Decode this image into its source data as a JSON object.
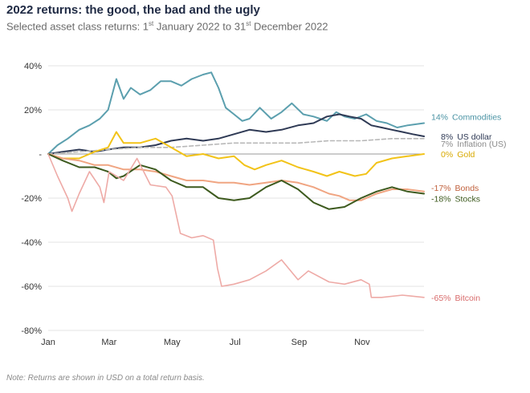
{
  "title": "2022 returns: the good, the bad and the ugly",
  "subtitle": {
    "prefix": "Selected asset class returns:  1",
    "sup1": "st",
    "middle": " January 2022 to 31",
    "sup2": "st",
    "suffix": " December 2022"
  },
  "footnote": "Note: Returns are shown in USD on a total return basis.",
  "chart_data": {
    "type": "line",
    "ylim": [
      -80,
      40
    ],
    "yticks": [
      40,
      20,
      0,
      -20,
      -40,
      -60,
      -80
    ],
    "ytick_labels": [
      "40%",
      "20%",
      "-",
      "-20%",
      "-40%",
      "-60%",
      "-80%"
    ],
    "xlim": [
      "2022-01-01",
      "2022-12-31"
    ],
    "xticks": [
      "2022-01-01",
      "2022-03-01",
      "2022-05-01",
      "2022-07-01",
      "2022-09-01",
      "2022-11-01"
    ],
    "xtick_labels": [
      "Jan",
      "Mar",
      "May",
      "Jul",
      "Sep",
      "Nov"
    ],
    "grid": "horizontal",
    "series": [
      {
        "name": "Commodities",
        "end_label": "14%",
        "color": "#5b9fae",
        "width": 2,
        "dash": "",
        "points": [
          [
            "2022-01-01",
            0
          ],
          [
            "2022-01-10",
            4
          ],
          [
            "2022-01-20",
            7
          ],
          [
            "2022-01-31",
            11
          ],
          [
            "2022-02-10",
            13
          ],
          [
            "2022-02-20",
            16
          ],
          [
            "2022-02-28",
            20
          ],
          [
            "2022-03-08",
            34
          ],
          [
            "2022-03-15",
            25
          ],
          [
            "2022-03-22",
            30
          ],
          [
            "2022-03-31",
            27
          ],
          [
            "2022-04-10",
            29
          ],
          [
            "2022-04-20",
            33
          ],
          [
            "2022-04-30",
            33
          ],
          [
            "2022-05-10",
            31
          ],
          [
            "2022-05-20",
            34
          ],
          [
            "2022-05-31",
            36
          ],
          [
            "2022-06-08",
            37
          ],
          [
            "2022-06-15",
            30
          ],
          [
            "2022-06-22",
            21
          ],
          [
            "2022-06-30",
            18
          ],
          [
            "2022-07-08",
            15
          ],
          [
            "2022-07-15",
            16
          ],
          [
            "2022-07-25",
            21
          ],
          [
            "2022-08-05",
            16
          ],
          [
            "2022-08-15",
            19
          ],
          [
            "2022-08-25",
            23
          ],
          [
            "2022-09-05",
            18
          ],
          [
            "2022-09-15",
            17
          ],
          [
            "2022-09-28",
            15
          ],
          [
            "2022-10-07",
            19
          ],
          [
            "2022-10-15",
            17
          ],
          [
            "2022-10-25",
            16
          ],
          [
            "2022-11-05",
            18
          ],
          [
            "2022-11-15",
            15
          ],
          [
            "2022-11-25",
            14
          ],
          [
            "2022-12-05",
            12
          ],
          [
            "2022-12-15",
            13
          ],
          [
            "2022-12-31",
            14
          ]
        ]
      },
      {
        "name": "US dollar",
        "end_label": "8%",
        "color": "#2f3a55",
        "width": 2,
        "dash": "",
        "points": [
          [
            "2022-01-01",
            0
          ],
          [
            "2022-01-15",
            1
          ],
          [
            "2022-01-31",
            2
          ],
          [
            "2022-02-15",
            1
          ],
          [
            "2022-02-28",
            2
          ],
          [
            "2022-03-15",
            3
          ],
          [
            "2022-03-31",
            3
          ],
          [
            "2022-04-15",
            4
          ],
          [
            "2022-04-30",
            6
          ],
          [
            "2022-05-15",
            7
          ],
          [
            "2022-05-31",
            6
          ],
          [
            "2022-06-15",
            7
          ],
          [
            "2022-06-30",
            9
          ],
          [
            "2022-07-15",
            11
          ],
          [
            "2022-07-31",
            10
          ],
          [
            "2022-08-15",
            11
          ],
          [
            "2022-08-31",
            13
          ],
          [
            "2022-09-15",
            14
          ],
          [
            "2022-09-28",
            17
          ],
          [
            "2022-10-10",
            18
          ],
          [
            "2022-10-20",
            17
          ],
          [
            "2022-10-31",
            16
          ],
          [
            "2022-11-10",
            13
          ],
          [
            "2022-11-20",
            12
          ],
          [
            "2022-11-30",
            11
          ],
          [
            "2022-12-10",
            10
          ],
          [
            "2022-12-20",
            9
          ],
          [
            "2022-12-31",
            8
          ]
        ]
      },
      {
        "name": "Inflation (US)",
        "end_label": "7%",
        "color": "#b8b8b8",
        "width": 1.6,
        "dash": "5,3",
        "points": [
          [
            "2022-01-01",
            0
          ],
          [
            "2022-01-31",
            1
          ],
          [
            "2022-02-28",
            2
          ],
          [
            "2022-03-31",
            3
          ],
          [
            "2022-04-30",
            3
          ],
          [
            "2022-05-31",
            4
          ],
          [
            "2022-06-30",
            5
          ],
          [
            "2022-07-31",
            5
          ],
          [
            "2022-08-31",
            5
          ],
          [
            "2022-09-30",
            6
          ],
          [
            "2022-10-31",
            6
          ],
          [
            "2022-11-30",
            7
          ],
          [
            "2022-12-31",
            7
          ]
        ]
      },
      {
        "name": "Gold",
        "end_label": "0%",
        "color": "#f2c318",
        "width": 2,
        "dash": "",
        "points": [
          [
            "2022-01-01",
            0
          ],
          [
            "2022-01-15",
            -2
          ],
          [
            "2022-01-31",
            -2
          ],
          [
            "2022-02-15",
            1
          ],
          [
            "2022-02-28",
            3
          ],
          [
            "2022-03-08",
            10
          ],
          [
            "2022-03-15",
            5
          ],
          [
            "2022-03-31",
            5
          ],
          [
            "2022-04-15",
            7
          ],
          [
            "2022-04-30",
            3
          ],
          [
            "2022-05-15",
            -1
          ],
          [
            "2022-05-31",
            0
          ],
          [
            "2022-06-15",
            -2
          ],
          [
            "2022-06-30",
            -1
          ],
          [
            "2022-07-10",
            -5
          ],
          [
            "2022-07-20",
            -7
          ],
          [
            "2022-07-31",
            -5
          ],
          [
            "2022-08-15",
            -3
          ],
          [
            "2022-08-31",
            -6
          ],
          [
            "2022-09-15",
            -8
          ],
          [
            "2022-09-28",
            -10
          ],
          [
            "2022-10-10",
            -8
          ],
          [
            "2022-10-25",
            -10
          ],
          [
            "2022-11-05",
            -9
          ],
          [
            "2022-11-15",
            -4
          ],
          [
            "2022-11-30",
            -2
          ],
          [
            "2022-12-15",
            -1
          ],
          [
            "2022-12-31",
            0
          ]
        ]
      },
      {
        "name": "Bonds",
        "end_label": "-17%",
        "color": "#f0a582",
        "width": 2,
        "dash": "",
        "points": [
          [
            "2022-01-01",
            0
          ],
          [
            "2022-01-15",
            -2
          ],
          [
            "2022-01-31",
            -3
          ],
          [
            "2022-02-15",
            -5
          ],
          [
            "2022-02-28",
            -5
          ],
          [
            "2022-03-15",
            -7
          ],
          [
            "2022-03-31",
            -7
          ],
          [
            "2022-04-15",
            -8
          ],
          [
            "2022-04-30",
            -10
          ],
          [
            "2022-05-15",
            -12
          ],
          [
            "2022-05-31",
            -12
          ],
          [
            "2022-06-15",
            -13
          ],
          [
            "2022-06-30",
            -13
          ],
          [
            "2022-07-15",
            -14
          ],
          [
            "2022-07-31",
            -13
          ],
          [
            "2022-08-15",
            -12
          ],
          [
            "2022-08-31",
            -13
          ],
          [
            "2022-09-15",
            -15
          ],
          [
            "2022-09-30",
            -18
          ],
          [
            "2022-10-10",
            -19
          ],
          [
            "2022-10-20",
            -21
          ],
          [
            "2022-10-31",
            -21
          ],
          [
            "2022-11-15",
            -18
          ],
          [
            "2022-11-30",
            -16
          ],
          [
            "2022-12-15",
            -16
          ],
          [
            "2022-12-31",
            -17
          ]
        ]
      },
      {
        "name": "Stocks",
        "end_label": "-18%",
        "color": "#3d5a1e",
        "width": 2,
        "dash": "",
        "points": [
          [
            "2022-01-01",
            0
          ],
          [
            "2022-01-15",
            -3
          ],
          [
            "2022-01-31",
            -6
          ],
          [
            "2022-02-15",
            -6
          ],
          [
            "2022-02-28",
            -8
          ],
          [
            "2022-03-08",
            -11
          ],
          [
            "2022-03-15",
            -10
          ],
          [
            "2022-03-31",
            -5
          ],
          [
            "2022-04-15",
            -7
          ],
          [
            "2022-04-30",
            -12
          ],
          [
            "2022-05-15",
            -15
          ],
          [
            "2022-05-31",
            -15
          ],
          [
            "2022-06-15",
            -20
          ],
          [
            "2022-06-30",
            -21
          ],
          [
            "2022-07-15",
            -20
          ],
          [
            "2022-07-31",
            -15
          ],
          [
            "2022-08-15",
            -12
          ],
          [
            "2022-08-31",
            -16
          ],
          [
            "2022-09-15",
            -22
          ],
          [
            "2022-09-30",
            -25
          ],
          [
            "2022-10-15",
            -24
          ],
          [
            "2022-10-31",
            -20
          ],
          [
            "2022-11-15",
            -17
          ],
          [
            "2022-11-30",
            -15
          ],
          [
            "2022-12-15",
            -17
          ],
          [
            "2022-12-31",
            -18
          ]
        ]
      },
      {
        "name": "Bitcoin",
        "end_label": "-65%",
        "color": "#eeaaa6",
        "width": 1.6,
        "dash": "",
        "points": [
          [
            "2022-01-01",
            0
          ],
          [
            "2022-01-10",
            -10
          ],
          [
            "2022-01-20",
            -20
          ],
          [
            "2022-01-24",
            -26
          ],
          [
            "2022-01-31",
            -18
          ],
          [
            "2022-02-10",
            -8
          ],
          [
            "2022-02-20",
            -15
          ],
          [
            "2022-02-24",
            -22
          ],
          [
            "2022-03-01",
            -8
          ],
          [
            "2022-03-15",
            -12
          ],
          [
            "2022-03-28",
            -2
          ],
          [
            "2022-04-10",
            -14
          ],
          [
            "2022-04-25",
            -15
          ],
          [
            "2022-05-01",
            -19
          ],
          [
            "2022-05-09",
            -36
          ],
          [
            "2022-05-20",
            -38
          ],
          [
            "2022-05-31",
            -37
          ],
          [
            "2022-06-10",
            -39
          ],
          [
            "2022-06-14",
            -52
          ],
          [
            "2022-06-18",
            -60
          ],
          [
            "2022-06-30",
            -59
          ],
          [
            "2022-07-15",
            -57
          ],
          [
            "2022-07-31",
            -53
          ],
          [
            "2022-08-15",
            -48
          ],
          [
            "2022-08-31",
            -57
          ],
          [
            "2022-09-10",
            -53
          ],
          [
            "2022-09-30",
            -58
          ],
          [
            "2022-10-15",
            -59
          ],
          [
            "2022-10-31",
            -57
          ],
          [
            "2022-11-08",
            -59
          ],
          [
            "2022-11-10",
            -65
          ],
          [
            "2022-11-20",
            -65
          ],
          [
            "2022-12-10",
            -64
          ],
          [
            "2022-12-31",
            -65
          ]
        ]
      }
    ]
  }
}
